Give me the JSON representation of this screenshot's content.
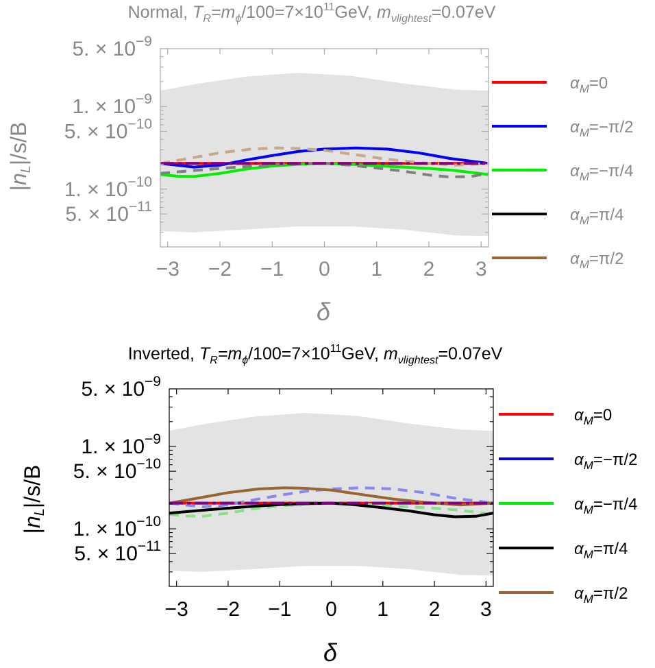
{
  "panels": [
    {
      "title_prefix": "Normal, ",
      "title_TR": "T",
      "title_TR_sub": "R",
      "title_eq": "=m",
      "title_phi": "ϕ",
      "title_mid": "/100=7×10",
      "title_exp": "11",
      "title_gev": "GeV, ",
      "title_m": "m",
      "title_m_sub": "νlightest",
      "title_end": "=0.07eV",
      "text_color": "#888888"
    },
    {
      "title_prefix": "Inverted, ",
      "title_TR": "T",
      "title_TR_sub": "R",
      "title_eq": "=m",
      "title_phi": "ϕ",
      "title_mid": "/100=7×10",
      "title_exp": "11",
      "title_gev": "GeV, ",
      "title_m": "m",
      "title_m_sub": "νlightest",
      "title_end": "=0.07eV",
      "text_color": "#000000"
    }
  ],
  "legend": [
    {
      "sym": "α",
      "sub": "M",
      "val": "=0",
      "color": "#ff0000"
    },
    {
      "sym": "α",
      "sub": "M",
      "val": "=−π/2",
      "color": "#0000ff"
    },
    {
      "sym": "α",
      "sub": "M",
      "val": "=−π/4",
      "color": "#00ee00"
    },
    {
      "sym": "α",
      "sub": "M",
      "val": "=π/4",
      "color": "#000000"
    },
    {
      "sym": "α",
      "sub": "M",
      "val": "=π/2",
      "color": "#996633"
    }
  ],
  "chart_data": [
    {
      "type": "line",
      "xlabel": "δ",
      "ylabel": "|n_L|/s/B",
      "xlim": [
        -3.14159,
        3.14159
      ],
      "ylim": [
        2e-11,
        5e-09
      ],
      "yscale": "log",
      "xticks": [
        "−3",
        "−2",
        "−1",
        "0",
        "1",
        "2",
        "3"
      ],
      "yticks": [
        {
          "value": 5e-09,
          "mant": "5. × 10",
          "exp": "−9"
        },
        {
          "value": 1e-09,
          "mant": "1. × 10",
          "exp": "−9"
        },
        {
          "value": 5e-10,
          "mant": "5. × 10",
          "exp": "−10"
        },
        {
          "value": 1e-10,
          "mant": "1. × 10",
          "exp": "−10"
        },
        {
          "value": 5e-11,
          "mant": "5. × 10",
          "exp": "−11"
        }
      ],
      "band": {
        "x": [
          -3.14,
          -2.5,
          -1.5,
          -0.5,
          0.5,
          1.5,
          2.5,
          3.14
        ],
        "upper": [
          1.55e-09,
          1.85e-09,
          2.3e-09,
          2.55e-09,
          2.35e-09,
          1.9e-09,
          1.6e-09,
          1.55e-09
        ],
        "lower": [
          3.1e-11,
          3e-11,
          3.25e-11,
          3.55e-11,
          3.55e-11,
          3.25e-11,
          2.75e-11,
          2.7e-11
        ],
        "color": "#e3e3e3"
      },
      "series": [
        {
          "color": "#ff0000",
          "dash": "",
          "x": [
            -3.14,
            -1.5,
            0,
            1.5,
            3.14
          ],
          "y": [
            2.05e-10,
            2.05e-10,
            2.05e-10,
            2.05e-10,
            2.05e-10
          ]
        },
        {
          "color": "#0000ff",
          "dash": "",
          "x": [
            -3.14,
            -2.5,
            -2.0,
            -1.5,
            -1.0,
            -0.5,
            0,
            0.6,
            1.2,
            1.8,
            2.4,
            3.14
          ],
          "y": [
            2.05e-10,
            1.85e-10,
            1.95e-10,
            2.25e-10,
            2.55e-10,
            2.85e-10,
            3.05e-10,
            3.15e-10,
            3.05e-10,
            2.75e-10,
            2.35e-10,
            2.05e-10
          ]
        },
        {
          "color": "#00ee00",
          "dash": "",
          "x": [
            -3.14,
            -2.8,
            -2.5,
            -2.0,
            -1.5,
            -1.0,
            -0.5,
            0,
            0.5,
            1.0,
            1.5,
            2.0,
            2.5,
            3.14
          ],
          "y": [
            1.5e-10,
            1.43e-10,
            1.42e-10,
            1.55e-10,
            1.75e-10,
            1.9e-10,
            2e-10,
            2.05e-10,
            2e-10,
            1.92e-10,
            1.85e-10,
            1.78e-10,
            1.68e-10,
            1.5e-10
          ]
        },
        {
          "color": "#808080",
          "dash": "14,10",
          "x": [
            -3.14,
            -2.5,
            -2.0,
            -1.5,
            -1.0,
            -0.5,
            0,
            0.5,
            1.0,
            1.5,
            2.0,
            2.4,
            2.8,
            3.14
          ],
          "y": [
            1.55e-10,
            1.68e-10,
            1.78e-10,
            1.88e-10,
            1.97e-10,
            2.02e-10,
            2.05e-10,
            1.95e-10,
            1.8e-10,
            1.65e-10,
            1.48e-10,
            1.4e-10,
            1.42e-10,
            1.55e-10
          ]
        },
        {
          "color": "#c4a98a",
          "dash": "14,10",
          "x": [
            -3.14,
            -2.6,
            -2.0,
            -1.4,
            -0.9,
            -0.5,
            0,
            0.6,
            1.2,
            1.8,
            2.5,
            3.14
          ],
          "y": [
            2.05e-10,
            2.35e-10,
            2.75e-10,
            3.05e-10,
            3.15e-10,
            3.1e-10,
            2.95e-10,
            2.6e-10,
            2.3e-10,
            2.1e-10,
            1.95e-10,
            2.05e-10
          ]
        },
        {
          "color": "#800080",
          "dash": "20,6,5,6",
          "x": [
            -3.14,
            3.14
          ],
          "y": [
            2.05e-10,
            2.05e-10
          ]
        }
      ]
    },
    {
      "type": "line",
      "xlabel": "δ",
      "ylabel": "|n_L|/s/B",
      "xlim": [
        -3.14159,
        3.14159
      ],
      "ylim": [
        2e-11,
        5e-09
      ],
      "yscale": "log",
      "xticks": [
        "−3",
        "−2",
        "−1",
        "0",
        "1",
        "2",
        "3"
      ],
      "yticks": [
        {
          "value": 5e-09,
          "mant": "5. × 10",
          "exp": "−9"
        },
        {
          "value": 1e-09,
          "mant": "1. × 10",
          "exp": "−9"
        },
        {
          "value": 5e-10,
          "mant": "5. × 10",
          "exp": "−10"
        },
        {
          "value": 1e-10,
          "mant": "1. × 10",
          "exp": "−10"
        },
        {
          "value": 5e-11,
          "mant": "5. × 10",
          "exp": "−11"
        }
      ],
      "band": {
        "x": [
          -3.14,
          -2.5,
          -1.5,
          -0.5,
          0.5,
          1.5,
          2.5,
          3.14
        ],
        "upper": [
          1.55e-09,
          1.85e-09,
          2.3e-09,
          2.55e-09,
          2.35e-09,
          1.9e-09,
          1.6e-09,
          1.55e-09
        ],
        "lower": [
          3.1e-11,
          3e-11,
          3.25e-11,
          3.55e-11,
          3.55e-11,
          3.25e-11,
          2.75e-11,
          2.7e-11
        ],
        "color": "#e3e3e3"
      },
      "series": [
        {
          "color": "#ff0000",
          "dash": "",
          "x": [
            -3.14,
            0,
            3.14
          ],
          "y": [
            2.05e-10,
            2.05e-10,
            2.05e-10
          ]
        },
        {
          "color": "#8888ee",
          "dash": "14,10",
          "x": [
            -3.14,
            -2.5,
            -2.0,
            -1.5,
            -1.0,
            -0.5,
            0,
            0.6,
            1.2,
            1.8,
            2.4,
            3.14
          ],
          "y": [
            2.05e-10,
            1.85e-10,
            1.95e-10,
            2.25e-10,
            2.55e-10,
            2.85e-10,
            3.05e-10,
            3.15e-10,
            3.05e-10,
            2.75e-10,
            2.35e-10,
            2.05e-10
          ]
        },
        {
          "color": "#88e088",
          "dash": "14,10",
          "x": [
            -3.14,
            -2.8,
            -2.5,
            -2.0,
            -1.5,
            -1.0,
            -0.5,
            0,
            0.5,
            1.0,
            1.5,
            2.0,
            2.5,
            3.14
          ],
          "y": [
            1.5e-10,
            1.43e-10,
            1.42e-10,
            1.55e-10,
            1.75e-10,
            1.9e-10,
            2e-10,
            2.05e-10,
            2e-10,
            1.92e-10,
            1.85e-10,
            1.78e-10,
            1.68e-10,
            1.5e-10
          ]
        },
        {
          "color": "#000000",
          "dash": "",
          "x": [
            -3.14,
            -2.5,
            -2.0,
            -1.5,
            -1.0,
            -0.5,
            0,
            0.5,
            1.0,
            1.5,
            2.0,
            2.4,
            2.8,
            3.14
          ],
          "y": [
            1.55e-10,
            1.68e-10,
            1.78e-10,
            1.88e-10,
            1.97e-10,
            2.02e-10,
            2.05e-10,
            1.95e-10,
            1.8e-10,
            1.65e-10,
            1.48e-10,
            1.4e-10,
            1.42e-10,
            1.55e-10
          ]
        },
        {
          "color": "#996633",
          "dash": "",
          "x": [
            -3.14,
            -2.6,
            -2.0,
            -1.4,
            -0.9,
            -0.5,
            0,
            0.6,
            1.2,
            1.8,
            2.5,
            3.14
          ],
          "y": [
            2.05e-10,
            2.35e-10,
            2.75e-10,
            3.05e-10,
            3.15e-10,
            3.1e-10,
            2.95e-10,
            2.6e-10,
            2.3e-10,
            2.1e-10,
            1.95e-10,
            2.05e-10
          ]
        },
        {
          "color": "#800080",
          "dash": "20,6,5,6",
          "x": [
            -3.14,
            3.14
          ],
          "y": [
            2.05e-10,
            2.05e-10
          ]
        }
      ]
    }
  ]
}
